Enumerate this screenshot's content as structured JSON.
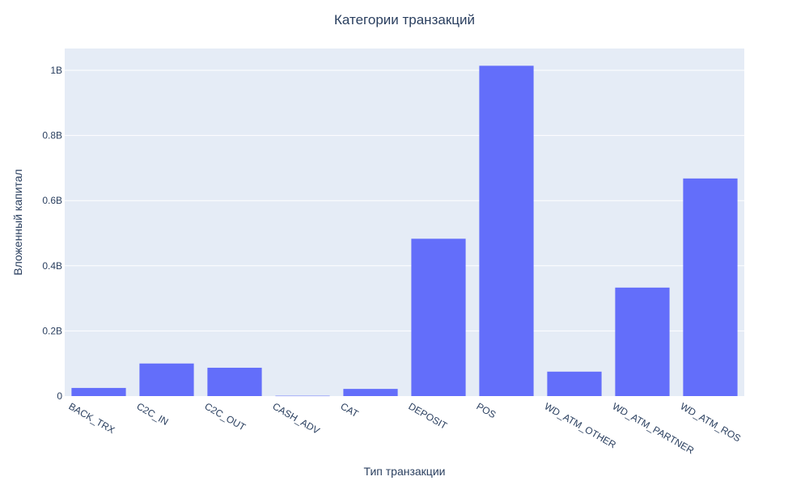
{
  "chart_data": {
    "type": "bar",
    "title": "Категории транзакций",
    "xlabel": "Тип транзакции",
    "ylabel": "Вложенный капитал",
    "categories": [
      "BACK_TRX",
      "C2C_IN",
      "C2C_OUT",
      "CASH_ADV",
      "CAT",
      "DEPOSIT",
      "POS",
      "WD_ATM_OTHER",
      "WD_ATM_PARTNER",
      "WD_ATM_ROS"
    ],
    "values": [
      25000000,
      100000000,
      87000000,
      1000000,
      22000000,
      483000000,
      1014000000,
      75000000,
      333000000,
      668000000
    ],
    "ylim": [
      0,
      1067000000
    ],
    "yticks": [
      0,
      200000000,
      400000000,
      600000000,
      800000000,
      1000000000
    ],
    "ytick_labels": [
      "0",
      "0.2B",
      "0.4B",
      "0.6B",
      "0.8B",
      "1B"
    ],
    "grid": true,
    "colors": {
      "bar": "#636efa",
      "plot_bg": "#e5ecf6",
      "grid": "#ffffff",
      "text": "#2a3f5f"
    }
  }
}
